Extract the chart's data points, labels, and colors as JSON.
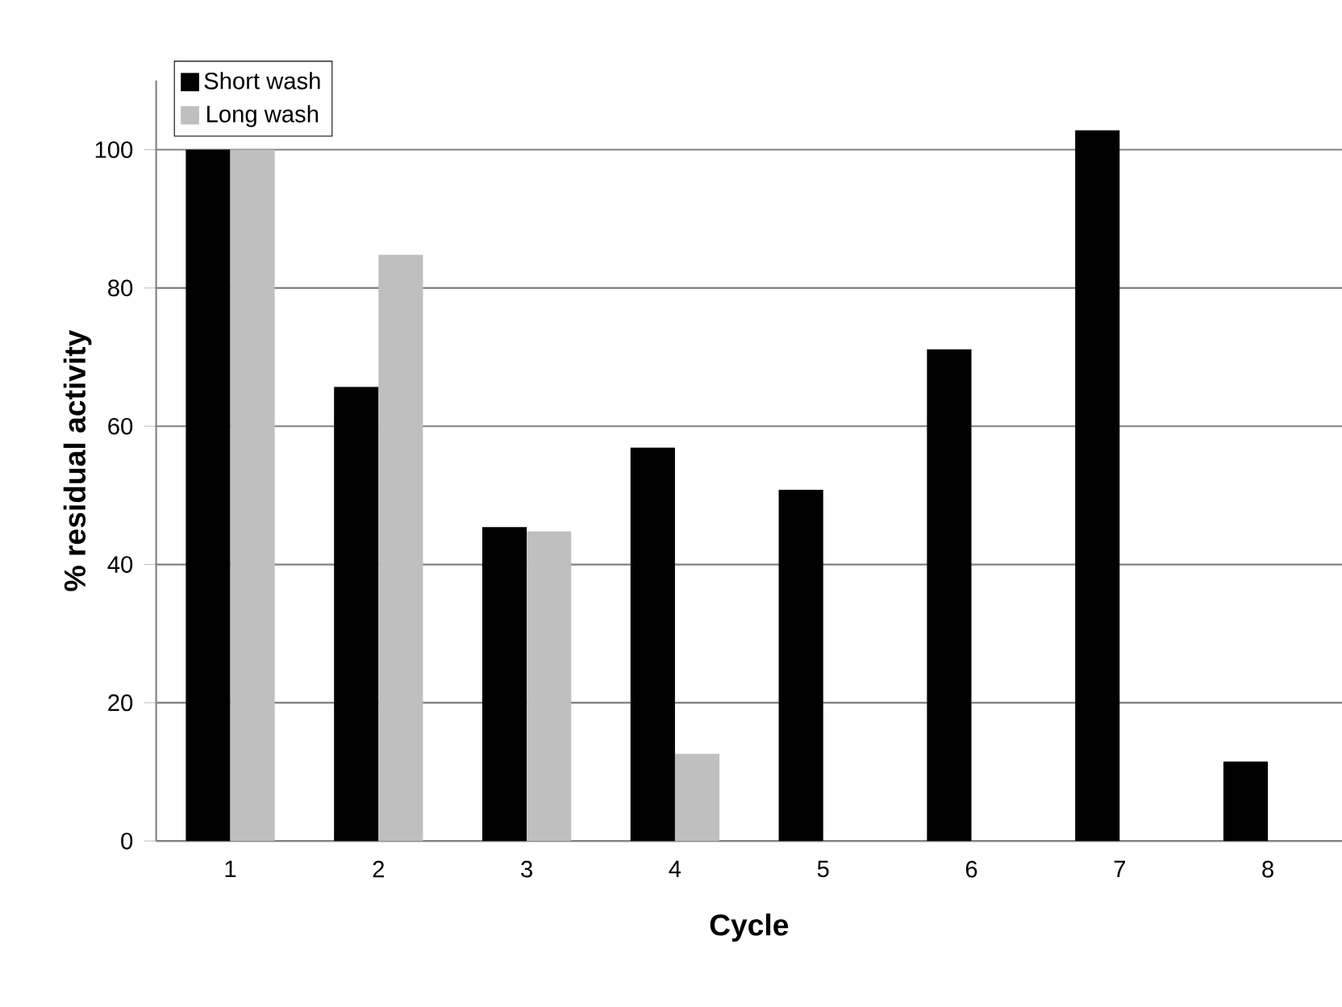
{
  "chart_data": {
    "type": "bar",
    "xlabel": "Cycle",
    "ylabel": "% residual activity",
    "categories": [
      "1",
      "2",
      "3",
      "4",
      "5",
      "6",
      "7",
      "8"
    ],
    "series": [
      {
        "name": "Short wash",
        "color": "#000000",
        "values": [
          100,
          65.7,
          45.4,
          56.9,
          50.8,
          71.1,
          102.8,
          11.5
        ]
      },
      {
        "name": "Long wash",
        "color": "#bfbfbf",
        "values": [
          100,
          84.8,
          44.8,
          12.6,
          null,
          null,
          null,
          null
        ]
      }
    ],
    "ylim": [
      0,
      110
    ],
    "yticks": [
      0,
      20,
      40,
      60,
      80,
      100
    ],
    "grid": "y",
    "legend": "top left"
  }
}
